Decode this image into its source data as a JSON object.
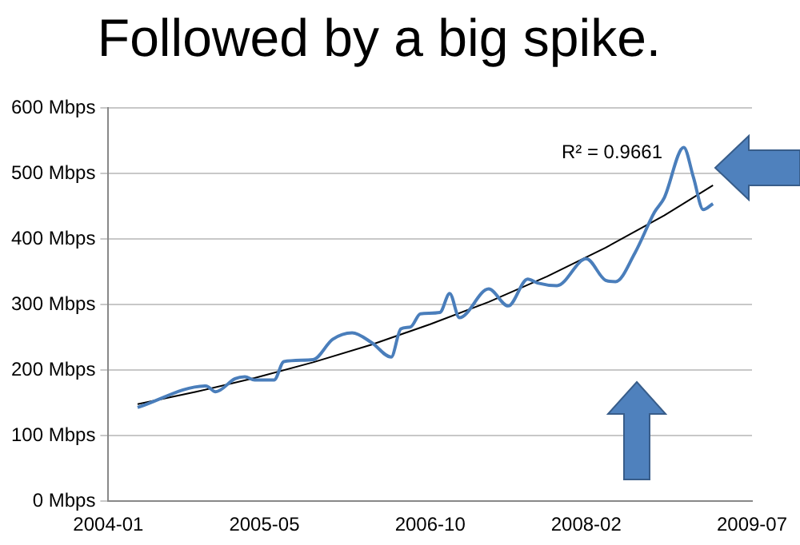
{
  "chart_data": {
    "type": "line",
    "title": "Followed by a big spike.",
    "xlim": [
      "2004-01",
      "2009-07"
    ],
    "xticks": [
      "2004-01",
      "2005-05",
      "2006-10",
      "2008-02",
      "2009-07"
    ],
    "ylim": [
      0,
      600
    ],
    "yticks": [
      {
        "value": 0,
        "label": "0 Mbps"
      },
      {
        "value": 100,
        "label": "100 Mbps"
      },
      {
        "value": 200,
        "label": "200 Mbps"
      },
      {
        "value": 300,
        "label": "300 Mbps"
      },
      {
        "value": 400,
        "label": "400 Mbps"
      },
      {
        "value": 500,
        "label": "500 Mbps"
      },
      {
        "value": 600,
        "label": "600 Mbps"
      }
    ],
    "grid": "y",
    "legend": false,
    "marker": "none",
    "annotations": [
      "R² = 0.9661"
    ],
    "series": [
      {
        "color": "#4a7ebb",
        "x": [
          "2004-04",
          "2004-11",
          "2004-12",
          "2005-02",
          "2005-03",
          "2005-04",
          "2005-06",
          "2005-07",
          "2005-10",
          "2005-12",
          "2006-02",
          "2006-04",
          "2006-06",
          "2006-07",
          "2006-08",
          "2006-09",
          "2006-11",
          "2006-12",
          "2007-01",
          "2007-04",
          "2007-06",
          "2007-08",
          "2007-09",
          "2007-11",
          "2008-02",
          "2008-04",
          "2008-05",
          "2008-07",
          "2008-09",
          "2008-10",
          "2008-12",
          "2009-01",
          "2009-02",
          "2009-03"
        ],
        "values": [
          143,
          176,
          167,
          187,
          190,
          185,
          185,
          213,
          216,
          247,
          257,
          242,
          220,
          263,
          266,
          286,
          288,
          317,
          280,
          324,
          298,
          339,
          333,
          329,
          370,
          337,
          335,
          379,
          441,
          463,
          540,
          494,
          445,
          454
        ]
      },
      {
        "type": "line",
        "color": "#000000",
        "x": [
          "2004-04",
          "2004-10",
          "2005-04",
          "2005-10",
          "2006-04",
          "2006-10",
          "2007-04",
          "2007-10",
          "2008-04",
          "2008-10",
          "2009-03"
        ],
        "values": [
          148,
          167,
          188,
          212,
          239,
          270,
          304,
          343,
          387,
          436,
          482
        ]
      }
    ]
  }
}
